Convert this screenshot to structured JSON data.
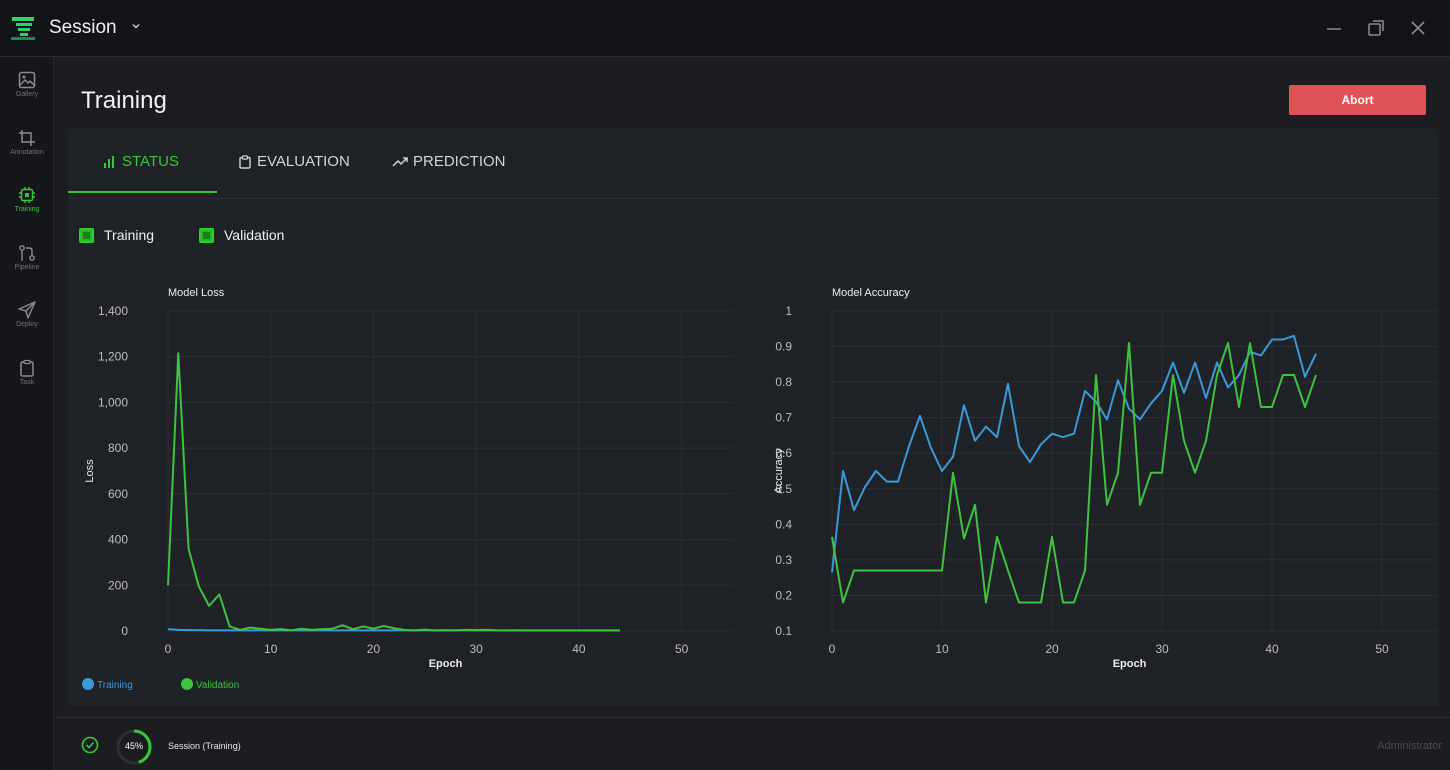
{
  "app": {
    "title": "Session"
  },
  "sidebar": {
    "items": [
      {
        "label": "Gallery",
        "icon": "image-icon"
      },
      {
        "label": "Annotation",
        "icon": "crop-icon"
      },
      {
        "label": "Training",
        "icon": "chip-icon",
        "active": true
      },
      {
        "label": "Pipeline",
        "icon": "pipeline-icon"
      },
      {
        "label": "Deploy",
        "icon": "send-icon"
      },
      {
        "label": "Task",
        "icon": "clipboard-icon"
      }
    ]
  },
  "page": {
    "title": "Training",
    "abort_label": "Abort"
  },
  "tabs": [
    {
      "label": "STATUS",
      "icon": "bar-chart-icon",
      "active": true
    },
    {
      "label": "EVALUATION",
      "icon": "clipboard-icon"
    },
    {
      "label": "PREDICTION",
      "icon": "trending-up-icon"
    }
  ],
  "filters": [
    {
      "label": "Training",
      "checked": true
    },
    {
      "label": "Validation",
      "checked": true
    }
  ],
  "colors": {
    "accent": "#37c837",
    "training": "#3a9ad9",
    "validation": "#3fc23f",
    "abort": "#e05255"
  },
  "chart_data": [
    {
      "type": "line",
      "title": "Model Loss",
      "xlabel": "Epoch",
      "ylabel": "Loss",
      "xlim": [
        0,
        55
      ],
      "ylim": [
        0,
        1400
      ],
      "xticks": [
        0,
        10,
        20,
        30,
        40,
        50
      ],
      "yticks": [
        0,
        200,
        400,
        600,
        800,
        1000,
        1200,
        1400
      ],
      "ytick_labels": [
        "0",
        "200",
        "400",
        "600",
        "800",
        "1,000",
        "1,200",
        "1,400"
      ],
      "grid": true,
      "legend": "bottom-left",
      "series": [
        {
          "name": "Training",
          "x": [
            0,
            1,
            2,
            3,
            4,
            5,
            6,
            7,
            8,
            9,
            10,
            11,
            12,
            13,
            14,
            15,
            16,
            17,
            18,
            19,
            20,
            21,
            22,
            23,
            24,
            25,
            26,
            27,
            28,
            29,
            30,
            31,
            32,
            33,
            34,
            35,
            36,
            37,
            38,
            39,
            40,
            41,
            42,
            43,
            44
          ],
          "values": [
            8,
            5,
            4,
            4,
            3,
            3,
            3,
            3,
            3,
            3,
            3,
            3,
            3,
            3,
            3,
            3,
            3,
            3,
            3,
            3,
            3,
            3,
            3,
            3,
            3,
            3,
            3,
            3,
            3,
            3,
            3,
            3,
            3,
            3,
            3,
            3,
            3,
            3,
            3,
            3,
            3,
            3,
            3,
            3,
            3
          ]
        },
        {
          "name": "Validation",
          "x": [
            0,
            1,
            2,
            3,
            4,
            5,
            6,
            7,
            8,
            9,
            10,
            11,
            12,
            13,
            14,
            15,
            16,
            17,
            18,
            19,
            20,
            21,
            22,
            23,
            24,
            25,
            26,
            27,
            28,
            29,
            30,
            31,
            32,
            33,
            34,
            35,
            36,
            37,
            38,
            39,
            40,
            41,
            42,
            43,
            44
          ],
          "values": [
            200,
            1215,
            360,
            195,
            110,
            160,
            20,
            5,
            15,
            10,
            5,
            8,
            3,
            10,
            5,
            8,
            10,
            25,
            8,
            20,
            10,
            22,
            12,
            5,
            3,
            6,
            2,
            4,
            3,
            5,
            4,
            5,
            3,
            2,
            3,
            2,
            2,
            2,
            2,
            2,
            2,
            2,
            2,
            2,
            2
          ]
        }
      ]
    },
    {
      "type": "line",
      "title": "Model Accuracy",
      "xlabel": "Epoch",
      "ylabel": "Accuracy",
      "xlim": [
        0,
        55
      ],
      "ylim": [
        0.1,
        1
      ],
      "xticks": [
        0,
        10,
        20,
        30,
        40,
        50
      ],
      "yticks": [
        0.1,
        0.2,
        0.3,
        0.4,
        0.5,
        0.6,
        0.7,
        0.8,
        0.9,
        1
      ],
      "ytick_labels": [
        "0.1",
        "0.2",
        "0.3",
        "0.4",
        "0.5",
        "0.6",
        "0.7",
        "0.8",
        "0.9",
        "1"
      ],
      "grid": true,
      "series": [
        {
          "name": "Training",
          "x": [
            0,
            1,
            2,
            3,
            4,
            5,
            6,
            7,
            8,
            9,
            10,
            11,
            12,
            13,
            14,
            15,
            16,
            17,
            18,
            19,
            20,
            21,
            22,
            23,
            24,
            25,
            26,
            27,
            28,
            29,
            30,
            31,
            32,
            33,
            34,
            35,
            36,
            37,
            38,
            39,
            40,
            41,
            42,
            43,
            44
          ],
          "values": [
            0.265,
            0.55,
            0.44,
            0.505,
            0.55,
            0.52,
            0.52,
            0.62,
            0.705,
            0.615,
            0.55,
            0.59,
            0.735,
            0.635,
            0.675,
            0.645,
            0.795,
            0.62,
            0.575,
            0.625,
            0.655,
            0.645,
            0.655,
            0.775,
            0.745,
            0.695,
            0.805,
            0.725,
            0.695,
            0.74,
            0.775,
            0.855,
            0.77,
            0.855,
            0.755,
            0.855,
            0.785,
            0.82,
            0.885,
            0.875,
            0.92,
            0.92,
            0.93,
            0.815,
            0.88
          ]
        },
        {
          "name": "Validation",
          "x": [
            0,
            1,
            2,
            3,
            4,
            5,
            6,
            7,
            8,
            9,
            10,
            11,
            12,
            13,
            14,
            15,
            16,
            17,
            18,
            19,
            20,
            21,
            22,
            23,
            24,
            25,
            26,
            27,
            28,
            29,
            30,
            31,
            32,
            33,
            34,
            35,
            36,
            37,
            38,
            39,
            40,
            41,
            42,
            43,
            44
          ],
          "values": [
            0.365,
            0.18,
            0.27,
            0.27,
            0.27,
            0.27,
            0.27,
            0.27,
            0.27,
            0.27,
            0.27,
            0.545,
            0.36,
            0.455,
            0.18,
            0.365,
            0.27,
            0.18,
            0.18,
            0.18,
            0.365,
            0.18,
            0.18,
            0.27,
            0.82,
            0.455,
            0.545,
            0.91,
            0.455,
            0.545,
            0.545,
            0.82,
            0.635,
            0.545,
            0.635,
            0.82,
            0.91,
            0.73,
            0.91,
            0.73,
            0.73,
            0.82,
            0.82,
            0.73,
            0.82
          ]
        }
      ]
    }
  ],
  "status": {
    "progress_percent": 45,
    "progress_label": "45%",
    "session_text": "Session (Training)",
    "user": "Administrator"
  }
}
